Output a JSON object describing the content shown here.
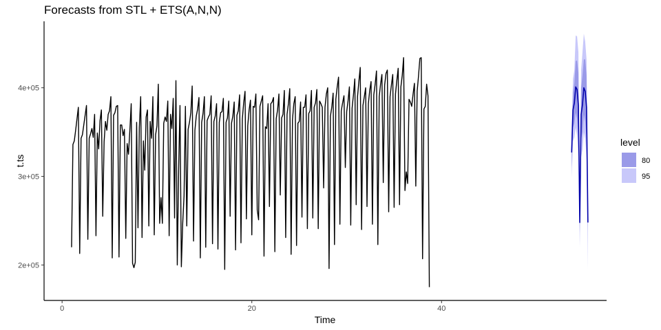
{
  "chart_data": {
    "type": "line",
    "title": "Forecasts from STL +  ETS(A,N,N)",
    "xlabel": "Time",
    "ylabel": "t.ts",
    "xlim": [
      -1.9,
      57.4
    ],
    "ylim": [
      160000,
      475000
    ],
    "x_ticks": [
      0,
      20,
      40
    ],
    "x_tick_labels": [
      "0",
      "20",
      "40"
    ],
    "y_ticks": [
      200000,
      300000,
      400000
    ],
    "y_tick_labels": [
      "2e+05",
      "3e+05",
      "4e+05"
    ],
    "grid": false,
    "legend_position": "right",
    "frequency": 7,
    "series": [
      {
        "name": "observed",
        "start": 1,
        "values": [
          220000,
          336000,
          340000,
          352000,
          365000,
          378000,
          213000,
          343000,
          347000,
          358000,
          369000,
          380000,
          229000,
          343000,
          348000,
          354000,
          344000,
          370000,
          233000,
          349000,
          331000,
          363000,
          375000,
          255000,
          339000,
          362000,
          352000,
          370000,
          374000,
          390000,
          208000,
          369000,
          372000,
          379000,
          380000,
          209000,
          358000,
          358000,
          346000,
          353000,
          230000,
          337000,
          325000,
          352000,
          382000,
          202000,
          197000,
          203000,
          361000,
          242000,
          355000,
          390000,
          231000,
          340000,
          307000,
          367000,
          375000,
          244000,
          362000,
          343000,
          390000,
          234000,
          347000,
          357000,
          404000,
          247000,
          276000,
          247000,
          360000,
          367000,
          362000,
          385000,
          233000,
          370000,
          354000,
          388000,
          253000,
          408000,
          200000,
          307000,
          380000,
          198000,
          247000,
          278000,
          379000,
          244000,
          353000,
          361000,
          372000,
          402000,
          227000,
          352000,
          368000,
          376000,
          389000,
          208000,
          361000,
          371000,
          390000,
          220000,
          363000,
          367000,
          370000,
          391000,
          224000,
          362000,
          368000,
          382000,
          218000,
          361000,
          372000,
          373000,
          388000,
          195000,
          361000,
          366000,
          385000,
          255000,
          360000,
          368000,
          384000,
          217000,
          369000,
          374000,
          392000,
          225000,
          365000,
          383000,
          396000,
          252000,
          357000,
          375000,
          386000,
          234000,
          379000,
          378000,
          393000,
          262000,
          251000,
          379000,
          385000,
          391000,
          210000,
          356000,
          354000,
          382000,
          266000,
          382000,
          384000,
          389000,
          215000,
          365000,
          375000,
          393000,
          279000,
          366000,
          370000,
          397000,
          231000,
          370000,
          382000,
          399000,
          212000,
          364000,
          382000,
          390000,
          222000,
          360000,
          362000,
          384000,
          254000,
          378000,
          378000,
          392000,
          241000,
          371000,
          374000,
          397000,
          253000,
          378000,
          383000,
          398000,
          241000,
          385000,
          382000,
          378000,
          287000,
          378000,
          393000,
          400000,
          196000,
          368000,
          378000,
          394000,
          223000,
          387000,
          401000,
          412000,
          246000,
          374000,
          383000,
          391000,
          310000,
          373000,
          385000,
          401000,
          245000,
          377000,
          392000,
          410000,
          268000,
          390000,
          407000,
          423000,
          240000,
          380000,
          390000,
          400000,
          266000,
          382000,
          397000,
          407000,
          246000,
          392000,
          404000,
          419000,
          223000,
          390000,
          404000,
          415000,
          293000,
          403000,
          416000,
          420000,
          260000,
          390000,
          403000,
          415000,
          265000,
          393000,
          408000,
          422000,
          268000,
          401000,
          414000,
          434000,
          284000,
          305000,
          292000,
          387000,
          384000,
          379000,
          393000,
          405000,
          289000,
          396000,
          413000,
          433000,
          434000,
          207000,
          376000,
          379000,
          404000,
          391000,
          175000
        ]
      },
      {
        "name": "forecast",
        "x": [
          53.7143,
          53.8571,
          54.0,
          54.1429,
          54.2857,
          54.4286,
          54.5714,
          54.7143,
          54.8571,
          55.0,
          55.1429,
          55.2857,
          55.4286
        ],
        "values": [
          327000,
          375000,
          383000,
          401000,
          398000,
          380000,
          248000,
          370000,
          381000,
          400000,
          396000,
          378000,
          248000
        ],
        "lo80": [
          310000,
          355000,
          360000,
          372000,
          365000,
          343000,
          238000,
          342000,
          350000,
          370000,
          362000,
          342000,
          240000
        ],
        "hi80": [
          344000,
          395000,
          405000,
          430000,
          431000,
          417000,
          260000,
          400000,
          414000,
          432000,
          432000,
          414000,
          256000
        ],
        "lo95": [
          298000,
          340000,
          344000,
          355000,
          346000,
          322000,
          220000,
          322000,
          330000,
          350000,
          342000,
          320000,
          195000
        ],
        "hi95": [
          356000,
          410000,
          420000,
          459000,
          458000,
          440000,
          282000,
          420000,
          440000,
          461000,
          452000,
          432000,
          290000
        ]
      }
    ],
    "legend": {
      "title": "level",
      "items": [
        {
          "label": "80",
          "color": "#9a9ae8"
        },
        {
          "label": "95",
          "color": "#c8c8fa"
        }
      ]
    },
    "colors": {
      "observed_line": "#000000",
      "forecast_line": "#0000aa",
      "band80": "#9a9ae8",
      "band95": "#c8c8fa"
    }
  }
}
